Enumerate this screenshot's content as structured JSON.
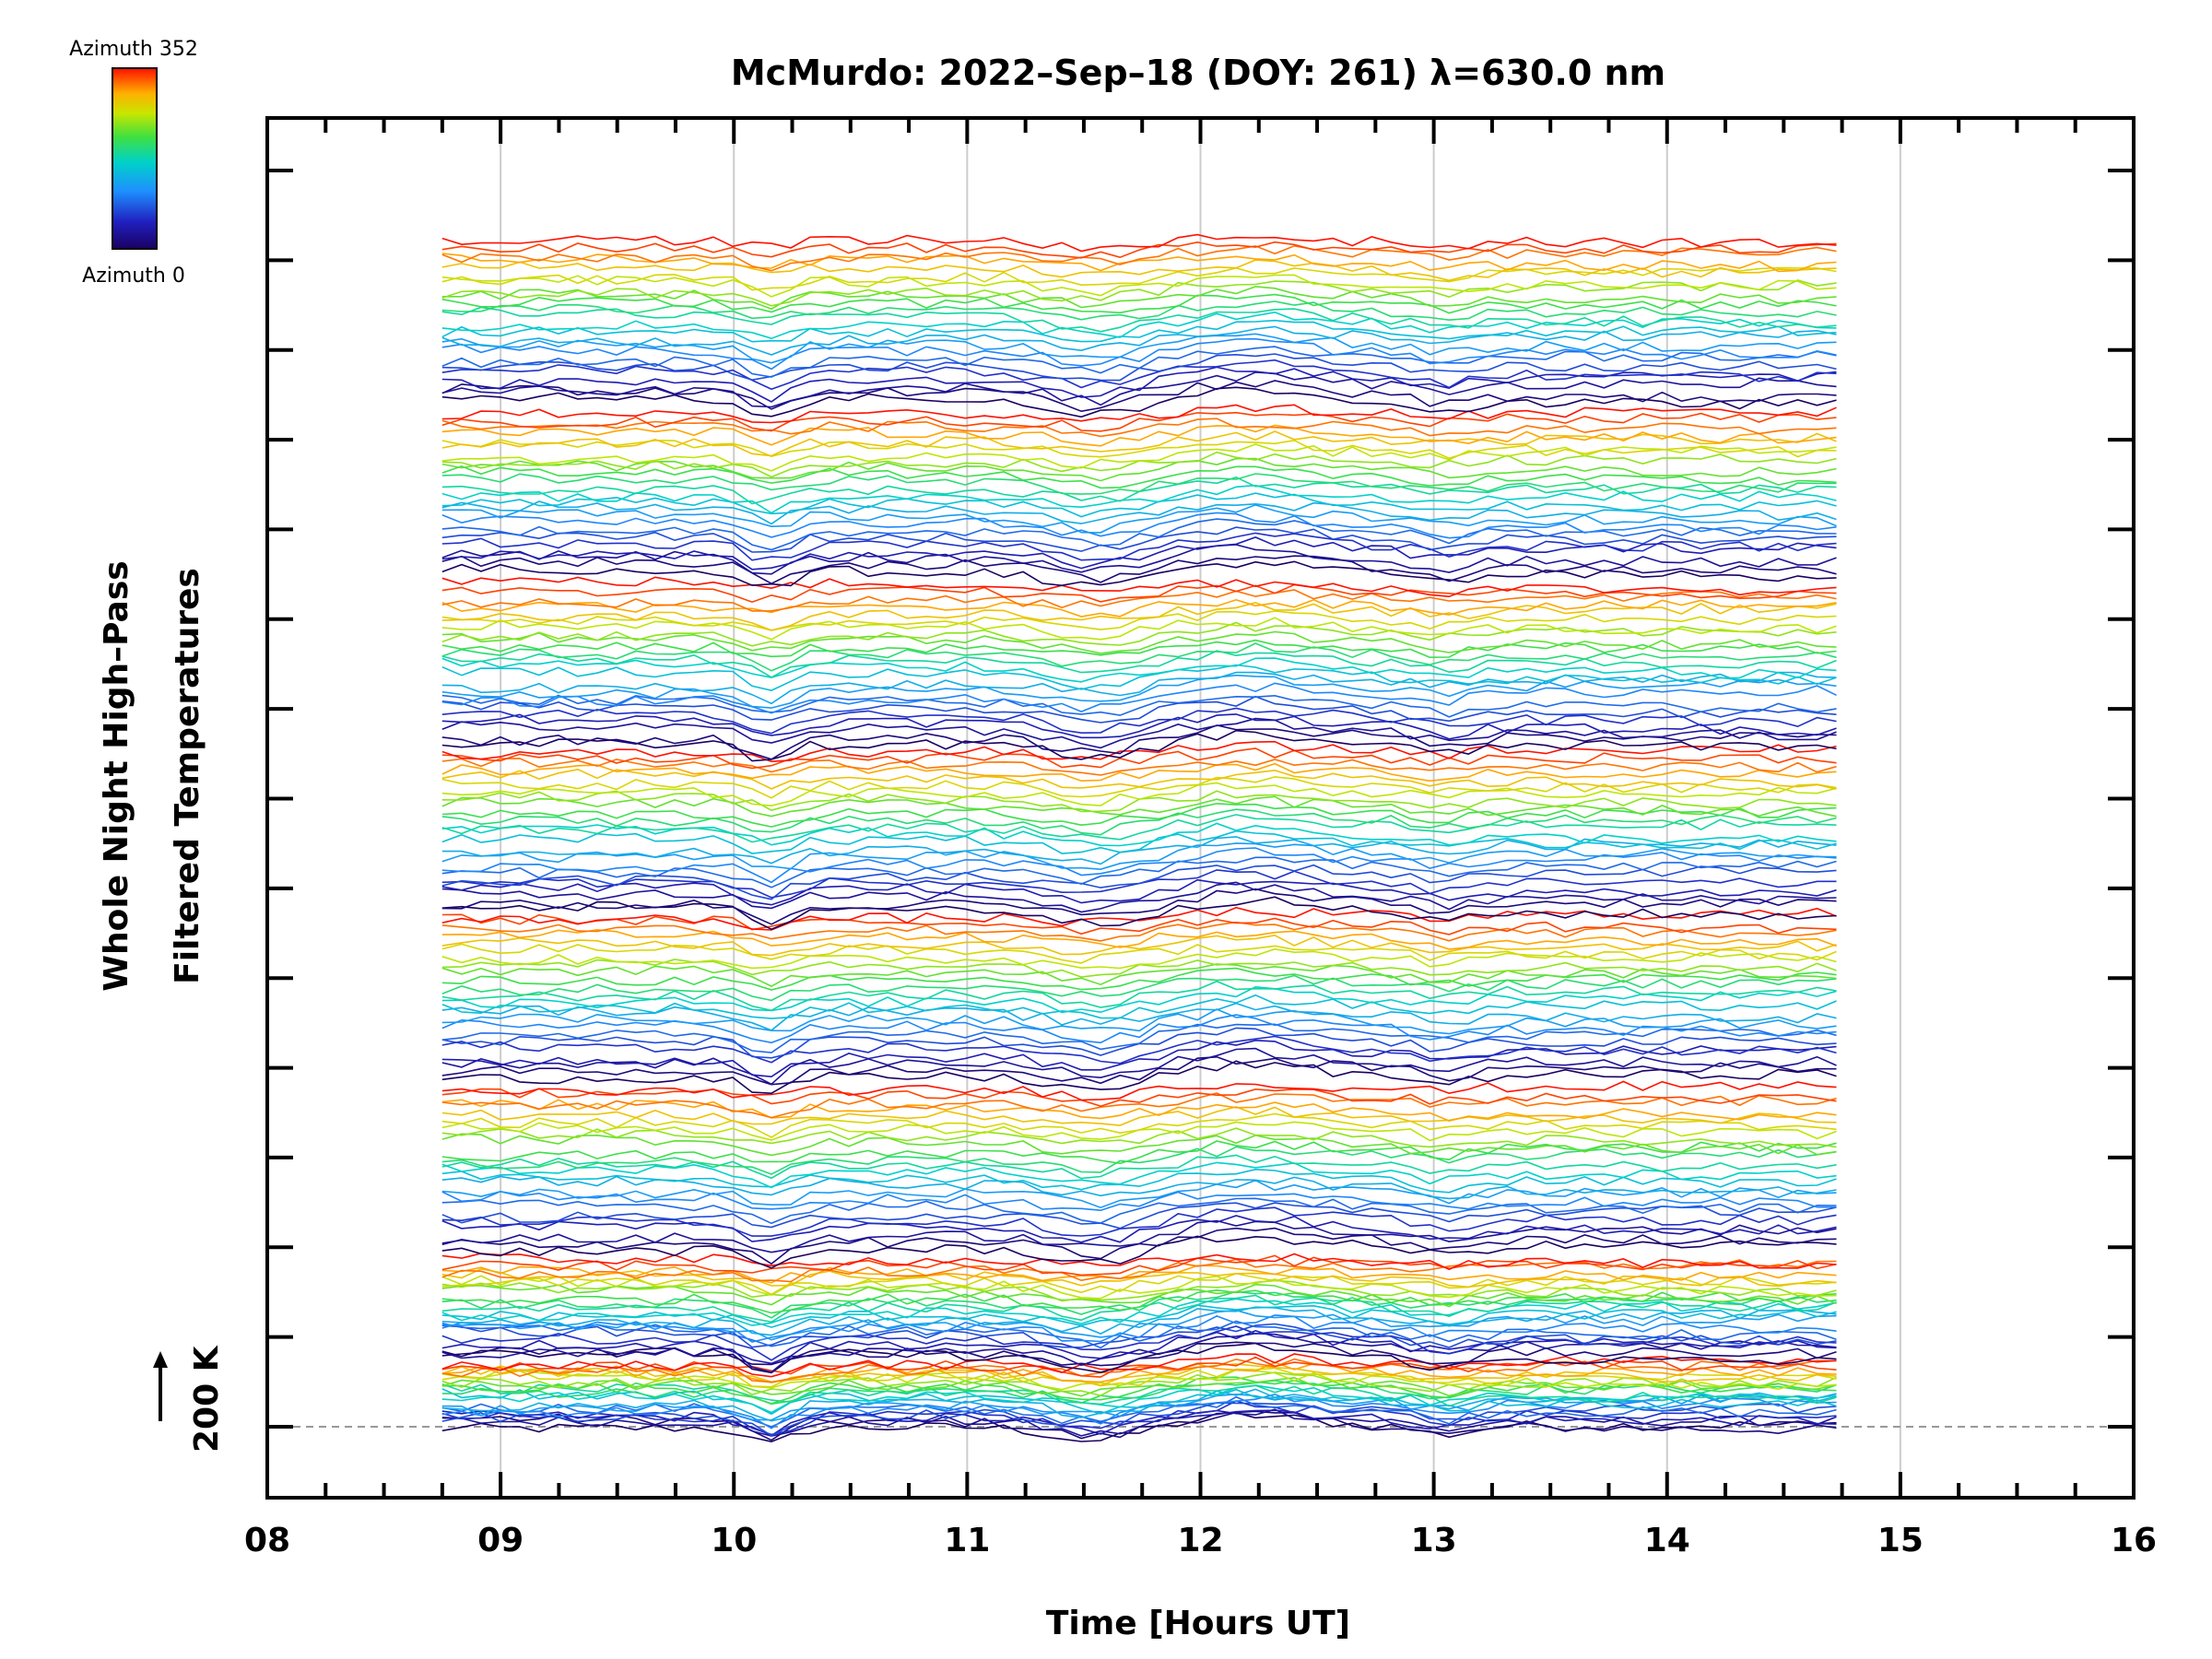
{
  "chart_data": {
    "type": "line",
    "title": "McMurdo: 2022–Sep–18 (DOY: 261) λ=630.0 nm",
    "xlabel": "Time [Hours UT]",
    "ylabel_line1": "Whole Night High–Pass",
    "ylabel_line2": "Filtered Temperatures",
    "scale_label": "200 K",
    "colorbar": {
      "top_label": "Azimuth 352",
      "bottom_label": "Azimuth 0",
      "colormap": "rainbow (dark blue → red)"
    },
    "xlim": [
      8,
      16
    ],
    "x_ticks": [
      "08",
      "09",
      "10",
      "11",
      "12",
      "13",
      "14",
      "15",
      "16"
    ],
    "x_grid": [
      9,
      10,
      11,
      12,
      13,
      14,
      15
    ],
    "y_ticks_count": 15,
    "grid": true,
    "series_description": "Stacked, vertically offset filtered temperature traces for many azimuths (0–352), each running from about 08:45 to 14:45 UT, colored by azimuth.",
    "time_range": [
      8.75,
      14.75
    ],
    "n_groups": 8,
    "traces_per_group": 24,
    "group_base_y": [
      0,
      0.055,
      0.14,
      0.275,
      0.405,
      0.535,
      0.67,
      0.805
    ],
    "group_height": [
      0.05,
      0.075,
      0.125,
      0.125,
      0.125,
      0.125,
      0.125,
      0.125
    ],
    "group_top_y": [
      0.05,
      0.13,
      0.265,
      0.4,
      0.53,
      0.66,
      0.795,
      0.93
    ],
    "y_unit_note": "fraction of plot height above the 200 K baseline",
    "colors": {
      "axis": "#000000",
      "grid": "#cccccc",
      "baseline_dash": "#999999",
      "azimuth_0": "#000060",
      "azimuth_mid": "#00d2c8",
      "azimuth_352": "#ff2000"
    }
  }
}
